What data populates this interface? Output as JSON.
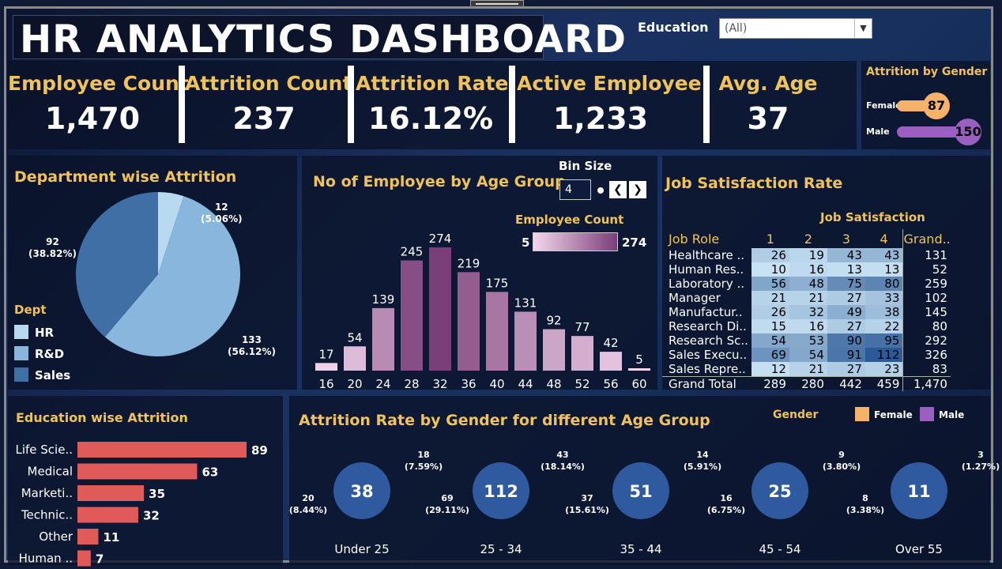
{
  "header": {
    "title": "HR ANALYTICS DASHBOARD"
  },
  "filter": {
    "label": "Education",
    "value": "(All)"
  },
  "kpis": [
    {
      "label": "Employee Count",
      "value": "1,470"
    },
    {
      "label": "Attrition Count",
      "value": "237"
    },
    {
      "label": "Attrition Rate",
      "value": "16.12%"
    },
    {
      "label": "Active Employee",
      "value": "1,233"
    },
    {
      "label": "Avg. Age",
      "value": "37"
    }
  ],
  "attrition_by_gender": {
    "title": "Attrition by Gender",
    "items": [
      {
        "label": "Female",
        "value": "87"
      },
      {
        "label": "Male",
        "value": "150"
      }
    ]
  },
  "department_panel": {
    "title": "Department wise Attrition",
    "legend_title": "Dept",
    "legend": [
      "HR",
      "R&D",
      "Sales"
    ]
  },
  "age_panel": {
    "title": "No of Employee by Age Group",
    "bin_size_label": "Bin Size",
    "bin_size_value": "4",
    "color_legend_title": "Employee Count",
    "color_min": "5",
    "color_max": "274"
  },
  "job_satisfaction": {
    "title": "Job Satisfaction Rate",
    "subheader": "Job Satisfaction",
    "col_headers": [
      "Job Role",
      "1",
      "2",
      "3",
      "4",
      "Grand.."
    ],
    "rows": [
      {
        "role": "Healthcare ..",
        "v": [
          "26",
          "19",
          "43",
          "43"
        ],
        "total": "131"
      },
      {
        "role": "Human Res..",
        "v": [
          "10",
          "16",
          "13",
          "13"
        ],
        "total": "52"
      },
      {
        "role": "Laboratory ..",
        "v": [
          "56",
          "48",
          "75",
          "80"
        ],
        "total": "259"
      },
      {
        "role": "Manager",
        "v": [
          "21",
          "21",
          "27",
          "33"
        ],
        "total": "102"
      },
      {
        "role": "Manufactur..",
        "v": [
          "26",
          "32",
          "49",
          "38"
        ],
        "total": "145"
      },
      {
        "role": "Research Di..",
        "v": [
          "15",
          "16",
          "27",
          "22"
        ],
        "total": "80"
      },
      {
        "role": "Research Sc..",
        "v": [
          "54",
          "53",
          "90",
          "95"
        ],
        "total": "292"
      },
      {
        "role": "Sales Execu..",
        "v": [
          "69",
          "54",
          "91",
          "112"
        ],
        "total": "326"
      },
      {
        "role": "Sales Repre..",
        "v": [
          "12",
          "21",
          "27",
          "23"
        ],
        "total": "83"
      }
    ],
    "grand_total": {
      "label": "Grand Total",
      "v": [
        "289",
        "280",
        "442",
        "459"
      ],
      "total": "1,470"
    }
  },
  "education_panel": {
    "title": "Education wise Attrition"
  },
  "gender_age_panel": {
    "title": "Attrition Rate by Gender for different Age Group",
    "legend_title": "Gender",
    "legend": [
      "Female",
      "Male"
    ]
  },
  "colors": {
    "accent": "#f0c35a",
    "female": "#f7b26a",
    "male": "#9b5fc0",
    "hr": "#b8daf0",
    "rnd": "#88b6dc",
    "sales": "#3f6fa5",
    "edu_bar": "#e05a5a",
    "donut_center": "#2f5aa0"
  },
  "chart_data": [
    {
      "type": "pie",
      "title": "Department wise Attrition",
      "categories": [
        "HR",
        "R&D",
        "Sales"
      ],
      "values": [
        12,
        133,
        92
      ],
      "labels": [
        "12\n(5.06%)",
        "133\n(56.12%)",
        "92\n(38.82%)"
      ]
    },
    {
      "type": "bar",
      "title": "No of Employee by Age Group",
      "categories": [
        "16",
        "20",
        "24",
        "28",
        "32",
        "36",
        "40",
        "44",
        "48",
        "52",
        "56",
        "60"
      ],
      "values": [
        17,
        54,
        139,
        245,
        274,
        219,
        175,
        131,
        92,
        77,
        42,
        5
      ],
      "ylim": [
        0,
        274
      ]
    },
    {
      "type": "bar",
      "orientation": "horizontal",
      "title": "Education wise Attrition",
      "categories": [
        "Life Scie..",
        "Medical",
        "Marketi..",
        "Technic..",
        "Other",
        "Human .."
      ],
      "values": [
        89,
        63,
        35,
        32,
        11,
        7
      ]
    },
    {
      "type": "pie",
      "subtype": "donut",
      "title": "Attrition Rate by Gender for different Age Group",
      "groups": [
        {
          "name": "Under 25",
          "total": 38,
          "female": 18,
          "male": 20,
          "female_label": "18\n(7.59%)",
          "male_label": "20\n(8.44%)"
        },
        {
          "name": "25 - 34",
          "total": 112,
          "female": 43,
          "male": 69,
          "female_label": "43\n(18.14%)",
          "male_label": "69\n(29.11%)"
        },
        {
          "name": "35 - 44",
          "total": 51,
          "female": 14,
          "male": 37,
          "female_label": "14\n(5.91%)",
          "male_label": "37\n(15.61%)"
        },
        {
          "name": "45 - 54",
          "total": 25,
          "female": 9,
          "male": 16,
          "female_label": "9\n(3.80%)",
          "male_label": "16\n(6.75%)"
        },
        {
          "name": "Over 55",
          "total": 11,
          "female": 3,
          "male": 8,
          "female_label": "3\n(1.27%)",
          "male_label": "8\n(3.38%)"
        }
      ]
    }
  ]
}
